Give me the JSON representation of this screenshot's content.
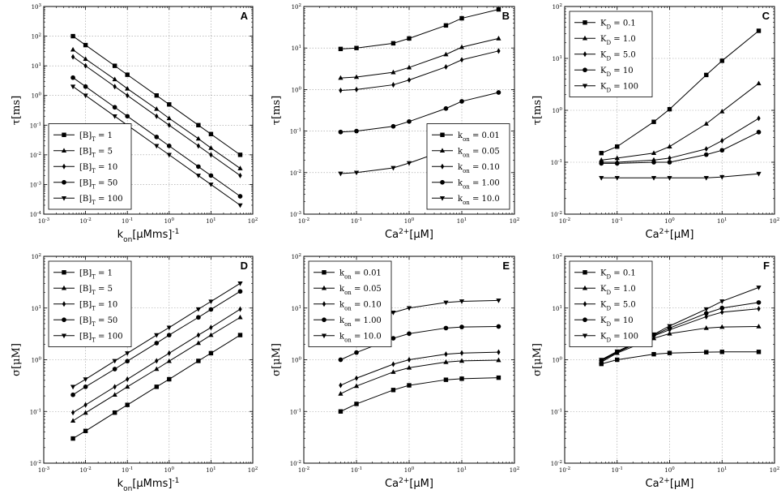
{
  "figure": {
    "background": "#ffffff",
    "line_color": "#000000"
  },
  "chart_data": [
    {
      "panel": "A",
      "type": "line",
      "xscale": "log",
      "yscale": "log",
      "xlim": [
        0.001,
        100
      ],
      "ylim": [
        0.0001,
        1000
      ],
      "xlabel": "k_on[μMms]^-1",
      "ylabel": "τ[ms]",
      "xticks": [
        "10^-3",
        "10^-2",
        "10^-1",
        "10^0",
        "10^1",
        "10^2"
      ],
      "yticks": [
        "10^-4",
        "10^-3",
        "10^-2",
        "10^-1",
        "10^0",
        "10^1",
        "10^2",
        "10^3"
      ],
      "legend_loc": "lower-left",
      "x": [
        0.005,
        0.01,
        0.05,
        0.1,
        0.5,
        1,
        5,
        10,
        50
      ],
      "series": [
        {
          "name": "[B]_T = 1",
          "marker": "square",
          "values": [
            100,
            50,
            10,
            5,
            1,
            0.5,
            0.1,
            0.05,
            0.01
          ]
        },
        {
          "name": "[B]_T = 5",
          "marker": "triangle",
          "values": [
            35,
            17,
            3.5,
            1.7,
            0.35,
            0.17,
            0.035,
            0.017,
            0.0035
          ]
        },
        {
          "name": "[B]_T = 10",
          "marker": "diamond",
          "values": [
            20,
            10,
            2,
            1,
            0.2,
            0.1,
            0.02,
            0.01,
            0.002
          ]
        },
        {
          "name": "[B]_T = 50",
          "marker": "circle",
          "values": [
            4,
            2,
            0.4,
            0.2,
            0.04,
            0.02,
            0.004,
            0.002,
            0.0004
          ]
        },
        {
          "name": "[B]_T = 100",
          "marker": "triangle-down",
          "values": [
            2,
            1,
            0.2,
            0.1,
            0.02,
            0.01,
            0.002,
            0.001,
            0.0002
          ]
        }
      ]
    },
    {
      "panel": "B",
      "type": "line",
      "xscale": "log",
      "yscale": "log",
      "xlim": [
        0.01,
        100
      ],
      "ylim": [
        0.001,
        100
      ],
      "xlabel": "Ca^2+[μM]",
      "ylabel": "τ[ms]",
      "xticks": [
        "10^-2",
        "10^-1",
        "10^0",
        "10^1",
        "10^2"
      ],
      "yticks": [
        "10^-3",
        "10^-2",
        "10^-1",
        "10^0",
        "10^1",
        "10^2"
      ],
      "legend_loc": "lower-right",
      "x": [
        0.05,
        0.1,
        0.5,
        1,
        5,
        10,
        50
      ],
      "series": [
        {
          "name": "k_on = 0.01",
          "marker": "square",
          "values": [
            9.5,
            10,
            13,
            17,
            35,
            52,
            85
          ]
        },
        {
          "name": "k_on = 0.05",
          "marker": "triangle",
          "values": [
            1.9,
            2,
            2.6,
            3.4,
            7,
            10.5,
            17
          ]
        },
        {
          "name": "k_on = 0.10",
          "marker": "diamond",
          "values": [
            0.95,
            1,
            1.3,
            1.7,
            3.5,
            5.2,
            8.5
          ]
        },
        {
          "name": "k_on = 1.00",
          "marker": "circle",
          "values": [
            0.095,
            0.1,
            0.13,
            0.17,
            0.35,
            0.52,
            0.85
          ]
        },
        {
          "name": "k_on = 10.0",
          "marker": "triangle-down",
          "values": [
            0.0095,
            0.01,
            0.013,
            0.017,
            0.035,
            0.052,
            0.085
          ]
        }
      ]
    },
    {
      "panel": "C",
      "type": "line",
      "xscale": "log",
      "yscale": "log",
      "xlim": [
        0.01,
        100
      ],
      "ylim": [
        0.01,
        100
      ],
      "xlabel": "Ca^2+[μM]",
      "ylabel": "τ[ms]",
      "xticks": [
        "10^-2",
        "10^-1",
        "10^0",
        "10^1",
        "10^2"
      ],
      "yticks": [
        "10^-2",
        "10^-1",
        "10^0",
        "10^1",
        "10^2"
      ],
      "legend_loc": "upper-left",
      "x": [
        0.05,
        0.1,
        0.5,
        1,
        5,
        10,
        50
      ],
      "series": [
        {
          "name": "K_D = 0.1",
          "marker": "square",
          "values": [
            0.15,
            0.2,
            0.6,
            1.05,
            4.8,
            9,
            34
          ]
        },
        {
          "name": "K_D = 1.0",
          "marker": "triangle",
          "values": [
            0.11,
            0.12,
            0.15,
            0.2,
            0.55,
            0.95,
            3.3
          ]
        },
        {
          "name": "K_D = 5.0",
          "marker": "diamond",
          "values": [
            0.1,
            0.1,
            0.11,
            0.12,
            0.18,
            0.26,
            0.7
          ]
        },
        {
          "name": "K_D = 10",
          "marker": "circle",
          "values": [
            0.095,
            0.095,
            0.1,
            0.1,
            0.14,
            0.17,
            0.38
          ]
        },
        {
          "name": "K_D = 100",
          "marker": "triangle-down",
          "values": [
            0.05,
            0.05,
            0.05,
            0.05,
            0.05,
            0.052,
            0.06
          ]
        }
      ]
    },
    {
      "panel": "D",
      "type": "line",
      "xscale": "log",
      "yscale": "log",
      "xlim": [
        0.001,
        100
      ],
      "ylim": [
        0.01,
        100
      ],
      "xlabel": "k_on[μMms]^-1",
      "ylabel": "σ[μM]",
      "xticks": [
        "10^-3",
        "10^-2",
        "10^-1",
        "10^0",
        "10^1",
        "10^2"
      ],
      "yticks": [
        "10^-2",
        "10^-1",
        "10^0",
        "10^1",
        "10^2"
      ],
      "legend_loc": "upper-left",
      "x": [
        0.005,
        0.01,
        0.05,
        0.1,
        0.5,
        1,
        5,
        10,
        50
      ],
      "series": [
        {
          "name": "[B]_T = 1",
          "marker": "square",
          "values": [
            0.03,
            0.042,
            0.095,
            0.134,
            0.3,
            0.42,
            0.95,
            1.34,
            3
          ]
        },
        {
          "name": "[B]_T = 5",
          "marker": "triangle",
          "values": [
            0.066,
            0.094,
            0.21,
            0.3,
            0.66,
            0.94,
            2.1,
            3,
            6.6
          ]
        },
        {
          "name": "[B]_T = 10",
          "marker": "diamond",
          "values": [
            0.095,
            0.134,
            0.3,
            0.42,
            0.95,
            1.34,
            3,
            4.2,
            9.5
          ]
        },
        {
          "name": "[B]_T = 50",
          "marker": "circle",
          "values": [
            0.21,
            0.3,
            0.66,
            0.94,
            2.1,
            3,
            6.6,
            9.4,
            21
          ]
        },
        {
          "name": "[B]_T = 100",
          "marker": "triangle-down",
          "values": [
            0.3,
            0.42,
            0.95,
            1.34,
            3,
            4.2,
            9.5,
            13.4,
            30
          ]
        }
      ]
    },
    {
      "panel": "E",
      "type": "line",
      "xscale": "log",
      "yscale": "log",
      "xlim": [
        0.01,
        100
      ],
      "ylim": [
        0.01,
        100
      ],
      "xlabel": "Ca^2+[μM]",
      "ylabel": "σ[μM]",
      "xticks": [
        "10^-2",
        "10^-1",
        "10^0",
        "10^1",
        "10^2"
      ],
      "yticks": [
        "10^-2",
        "10^-1",
        "10^0",
        "10^1",
        "10^2"
      ],
      "legend_loc": "upper-left",
      "x": [
        0.05,
        0.1,
        0.5,
        1,
        5,
        10,
        50
      ],
      "series": [
        {
          "name": "k_on = 0.01",
          "marker": "square",
          "values": [
            0.1,
            0.14,
            0.26,
            0.32,
            0.41,
            0.43,
            0.45
          ]
        },
        {
          "name": "k_on = 0.05",
          "marker": "triangle",
          "values": [
            0.22,
            0.31,
            0.58,
            0.7,
            0.9,
            0.95,
            0.98
          ]
        },
        {
          "name": "k_on = 0.10",
          "marker": "diamond",
          "values": [
            0.32,
            0.44,
            0.82,
            1,
            1.28,
            1.35,
            1.4
          ]
        },
        {
          "name": "k_on = 1.00",
          "marker": "circle",
          "values": [
            1,
            1.38,
            2.6,
            3.2,
            4.1,
            4.3,
            4.4
          ]
        },
        {
          "name": "k_on = 10.0",
          "marker": "triangle-down",
          "values": [
            3.2,
            4.4,
            8.2,
            10,
            12.8,
            13.5,
            14
          ]
        }
      ]
    },
    {
      "panel": "F",
      "type": "line",
      "xscale": "log",
      "yscale": "log",
      "xlim": [
        0.01,
        100
      ],
      "ylim": [
        0.01,
        100
      ],
      "xlabel": "Ca^2+[μM]",
      "ylabel": "σ[μM]",
      "xticks": [
        "10^-2",
        "10^-1",
        "10^0",
        "10^1",
        "10^2"
      ],
      "yticks": [
        "10^-2",
        "10^-1",
        "10^0",
        "10^1",
        "10^2"
      ],
      "legend_loc": "upper-left",
      "x": [
        0.05,
        0.1,
        0.5,
        1,
        5,
        10,
        50
      ],
      "series": [
        {
          "name": "K_D = 0.1",
          "marker": "square",
          "values": [
            0.83,
            1,
            1.28,
            1.35,
            1.4,
            1.42,
            1.42
          ]
        },
        {
          "name": "K_D = 1.0",
          "marker": "triangle",
          "values": [
            0.9,
            1.35,
            2.6,
            3.2,
            4.1,
            4.3,
            4.4
          ]
        },
        {
          "name": "K_D = 5.0",
          "marker": "diamond",
          "values": [
            0.95,
            1.4,
            2.9,
            3.8,
            6.8,
            8.3,
            9.7
          ]
        },
        {
          "name": "K_D = 10",
          "marker": "circle",
          "values": [
            0.97,
            1.42,
            3,
            4.1,
            7.9,
            10,
            12.8
          ]
        },
        {
          "name": "K_D = 100",
          "marker": "triangle-down",
          "values": [
            1,
            1.45,
            3.1,
            4.5,
            9.5,
            13.5,
            25
          ]
        }
      ]
    }
  ]
}
